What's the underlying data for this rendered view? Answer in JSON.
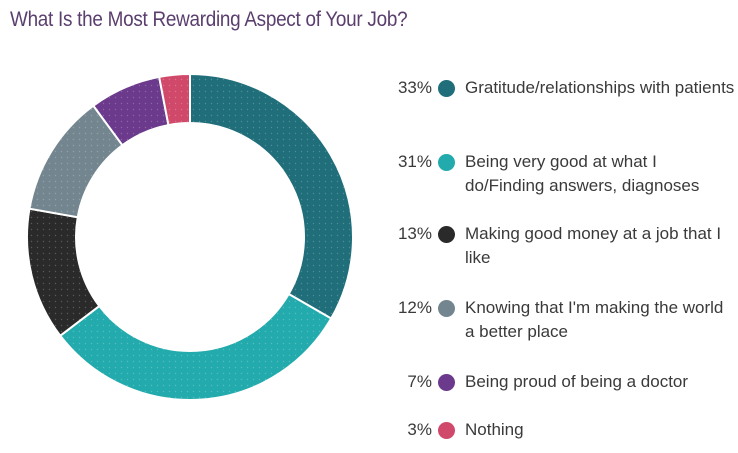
{
  "title": "What Is the Most Rewarding Aspect of Your Job?",
  "chart_data": {
    "type": "pie",
    "title": "What Is the Most Rewarding Aspect of Your Job?",
    "donut": true,
    "legend_position": "right",
    "categories": [
      "Gratitude/relationships with patients",
      "Being very good at what I do/Finding answers, diagnoses",
      "Making good money at a job that I like",
      "Knowing that I'm making the world a better place",
      "Being proud of being a doctor",
      "Nothing"
    ],
    "values": [
      33,
      31,
      13,
      12,
      7,
      3
    ],
    "labels": [
      "33%",
      "31%",
      "13%",
      "12%",
      "7%",
      "3%"
    ],
    "colors": [
      "#1f6e7a",
      "#22aaad",
      "#2a2a2a",
      "#73868f",
      "#6b3a8c",
      "#d1496a"
    ]
  }
}
